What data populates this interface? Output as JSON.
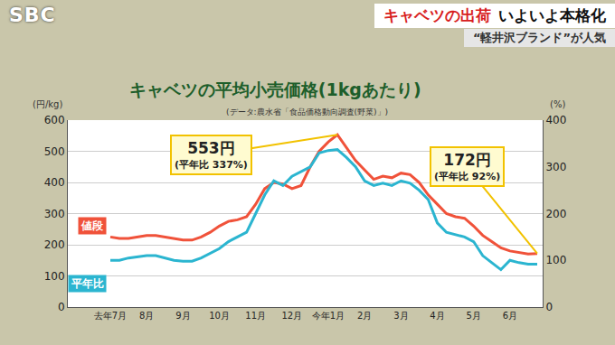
{
  "banner": {
    "channel": "SBC",
    "headline": [
      "キャベツの出荷",
      "いよいよ本格化"
    ],
    "subheadline": "“軽井沢ブランド”が人気"
  },
  "chart_data": {
    "type": "line",
    "title": "キャベツの平均小売価格(1kgあたり)",
    "subtitle": "(データ:農水省「食品価格動向調査(野菜)」)",
    "y_label": "(円/kg)",
    "y2_label": "(%)",
    "categories": [
      "去年7月",
      null,
      null,
      null,
      "8月",
      null,
      null,
      null,
      "9月",
      null,
      null,
      null,
      "10月",
      null,
      null,
      null,
      "11月",
      null,
      null,
      null,
      "12月",
      null,
      null,
      null,
      "今年1月",
      null,
      null,
      null,
      "2月",
      null,
      null,
      null,
      "3月",
      null,
      null,
      null,
      "4月",
      null,
      null,
      null,
      "5月",
      null,
      null,
      null,
      "6月",
      null,
      null,
      null
    ],
    "series": [
      {
        "name": "値段",
        "color": "#f0523a",
        "values": [
          225,
          220,
          220,
          225,
          230,
          230,
          225,
          220,
          215,
          215,
          225,
          240,
          260,
          275,
          280,
          290,
          330,
          380,
          400,
          395,
          380,
          390,
          450,
          500,
          530,
          553,
          510,
          470,
          440,
          410,
          420,
          415,
          430,
          425,
          400,
          360,
          330,
          300,
          290,
          285,
          260,
          230,
          210,
          190,
          180,
          175,
          170,
          172
        ]
      },
      {
        "name": "平年比",
        "color": "#2bb5d0",
        "axis": "y2",
        "values": [
          100,
          100,
          105,
          108,
          110,
          110,
          105,
          100,
          98,
          98,
          105,
          115,
          125,
          140,
          150,
          160,
          200,
          240,
          270,
          260,
          280,
          290,
          300,
          330,
          335,
          337,
          320,
          300,
          270,
          260,
          265,
          260,
          270,
          265,
          250,
          230,
          180,
          160,
          155,
          150,
          140,
          110,
          95,
          80,
          100,
          95,
          92,
          92
        ]
      }
    ],
    "ylim": [
      0,
      600
    ],
    "yticks": [
      0,
      100,
      200,
      300,
      400,
      500,
      600
    ],
    "y2lim": [
      0,
      400
    ],
    "y2ticks": [
      0,
      100,
      200,
      300,
      400
    ],
    "grid": true,
    "annotations": [
      {
        "text": [
          "553円",
          "(平年比 337%)"
        ],
        "x": 25,
        "y": 553
      },
      {
        "text": [
          "172円",
          "(平年比 92%)"
        ],
        "x": 47,
        "y": 172
      }
    ]
  }
}
